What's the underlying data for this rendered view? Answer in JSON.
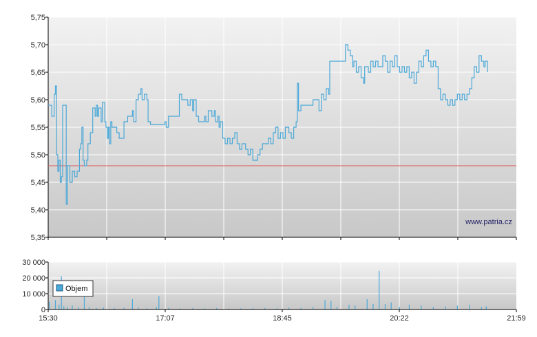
{
  "watermark": "www.patria.cz",
  "colors": {
    "price_line": "#4aa8d8",
    "reference_line": "#e05050",
    "volume_bar": "#4aa8d8",
    "grid": "#ffffff",
    "axis": "#000000"
  },
  "chart_data": [
    {
      "type": "line",
      "name": "price",
      "x_ticks": [
        "15:30",
        "17:07",
        "18:45",
        "20:22",
        "21:59"
      ],
      "x_range": [
        "15:30",
        "21:59"
      ],
      "y_ticks": [
        "5,35",
        "5,40",
        "5,45",
        "5,50",
        "5,55",
        "5,60",
        "5,65",
        "5,70",
        "5,75"
      ],
      "ylim": [
        5.35,
        5.75
      ],
      "reference_value": 5.48,
      "grid": true,
      "points": [
        [
          "15:30",
          5.59
        ],
        [
          "15:33",
          5.57
        ],
        [
          "15:35",
          5.61
        ],
        [
          "15:36",
          5.625
        ],
        [
          "15:37",
          5.5
        ],
        [
          "15:38",
          5.47
        ],
        [
          "15:39",
          5.49
        ],
        [
          "15:40",
          5.45
        ],
        [
          "15:41",
          5.46
        ],
        [
          "15:42",
          5.59
        ],
        [
          "15:44",
          5.59
        ],
        [
          "15:45",
          5.41
        ],
        [
          "15:46",
          5.48
        ],
        [
          "15:48",
          5.45
        ],
        [
          "15:50",
          5.47
        ],
        [
          "15:52",
          5.46
        ],
        [
          "15:54",
          5.47
        ],
        [
          "15:56",
          5.51
        ],
        [
          "15:57",
          5.52
        ],
        [
          "15:58",
          5.55
        ],
        [
          "15:59",
          5.49
        ],
        [
          "16:00",
          5.48
        ],
        [
          "16:02",
          5.49
        ],
        [
          "16:03",
          5.52
        ],
        [
          "16:05",
          5.54
        ],
        [
          "16:07",
          5.585
        ],
        [
          "16:09",
          5.57
        ],
        [
          "16:10",
          5.59
        ],
        [
          "16:11",
          5.57
        ],
        [
          "16:12",
          5.585
        ],
        [
          "16:14",
          5.56
        ],
        [
          "16:15",
          5.595
        ],
        [
          "16:17",
          5.56
        ],
        [
          "16:18",
          5.55
        ],
        [
          "16:19",
          5.53
        ],
        [
          "16:20",
          5.55
        ],
        [
          "16:21",
          5.52
        ],
        [
          "16:22",
          5.56
        ],
        [
          "16:23",
          5.55
        ],
        [
          "16:25",
          5.55
        ],
        [
          "16:27",
          5.54
        ],
        [
          "16:29",
          5.53
        ],
        [
          "16:31",
          5.53
        ],
        [
          "16:33",
          5.56
        ],
        [
          "16:36",
          5.57
        ],
        [
          "16:38",
          5.57
        ],
        [
          "16:40",
          5.58
        ],
        [
          "16:41",
          5.56
        ],
        [
          "16:43",
          5.6
        ],
        [
          "16:45",
          5.61
        ],
        [
          "16:47",
          5.62
        ],
        [
          "16:48",
          5.6
        ],
        [
          "16:50",
          5.61
        ],
        [
          "16:52",
          5.6
        ],
        [
          "16:53",
          5.56
        ],
        [
          "16:55",
          5.555
        ],
        [
          "17:00",
          5.555
        ],
        [
          "17:05",
          5.555
        ],
        [
          "17:07",
          5.56
        ],
        [
          "17:08",
          5.55
        ],
        [
          "17:10",
          5.57
        ],
        [
          "17:14",
          5.57
        ],
        [
          "17:17",
          5.57
        ],
        [
          "17:19",
          5.61
        ],
        [
          "17:21",
          5.6
        ],
        [
          "17:24",
          5.6
        ],
        [
          "17:26",
          5.59
        ],
        [
          "17:28",
          5.6
        ],
        [
          "17:30",
          5.58
        ],
        [
          "17:31",
          5.6
        ],
        [
          "17:33",
          5.57
        ],
        [
          "17:35",
          5.56
        ],
        [
          "17:38",
          5.56
        ],
        [
          "17:40",
          5.57
        ],
        [
          "17:41",
          5.56
        ],
        [
          "17:43",
          5.58
        ],
        [
          "17:46",
          5.57
        ],
        [
          "17:48",
          5.58
        ],
        [
          "17:49",
          5.56
        ],
        [
          "17:51",
          5.57
        ],
        [
          "17:52",
          5.55
        ],
        [
          "17:53",
          5.56
        ],
        [
          "17:55",
          5.53
        ],
        [
          "17:57",
          5.52
        ],
        [
          "17:59",
          5.53
        ],
        [
          "18:01",
          5.52
        ],
        [
          "18:03",
          5.53
        ],
        [
          "18:05",
          5.54
        ],
        [
          "18:07",
          5.52
        ],
        [
          "18:09",
          5.51
        ],
        [
          "18:11",
          5.52
        ],
        [
          "18:14",
          5.51
        ],
        [
          "18:16",
          5.5
        ],
        [
          "18:18",
          5.51
        ],
        [
          "18:20",
          5.49
        ],
        [
          "18:22",
          5.49
        ],
        [
          "18:24",
          5.5
        ],
        [
          "18:26",
          5.51
        ],
        [
          "18:28",
          5.52
        ],
        [
          "18:31",
          5.52
        ],
        [
          "18:33",
          5.53
        ],
        [
          "18:35",
          5.52
        ],
        [
          "18:37",
          5.54
        ],
        [
          "18:39",
          5.55
        ],
        [
          "18:41",
          5.53
        ],
        [
          "18:43",
          5.54
        ],
        [
          "18:45",
          5.53
        ],
        [
          "18:47",
          5.55
        ],
        [
          "18:50",
          5.54
        ],
        [
          "18:52",
          5.53
        ],
        [
          "18:54",
          5.55
        ],
        [
          "18:56",
          5.56
        ],
        [
          "18:57",
          5.63
        ],
        [
          "18:58",
          5.58
        ],
        [
          "19:00",
          5.59
        ],
        [
          "19:04",
          5.59
        ],
        [
          "19:08",
          5.59
        ],
        [
          "19:10",
          5.6
        ],
        [
          "19:13",
          5.6
        ],
        [
          "19:15",
          5.58
        ],
        [
          "19:17",
          5.61
        ],
        [
          "19:19",
          5.6
        ],
        [
          "19:21",
          5.62
        ],
        [
          "19:23",
          5.61
        ],
        [
          "19:24",
          5.67
        ],
        [
          "19:27",
          5.67
        ],
        [
          "19:31",
          5.67
        ],
        [
          "19:35",
          5.67
        ],
        [
          "19:37",
          5.7
        ],
        [
          "19:39",
          5.69
        ],
        [
          "19:41",
          5.68
        ],
        [
          "19:43",
          5.66
        ],
        [
          "19:44",
          5.67
        ],
        [
          "19:46",
          5.65
        ],
        [
          "19:48",
          5.66
        ],
        [
          "19:50",
          5.64
        ],
        [
          "19:52",
          5.63
        ],
        [
          "19:53",
          5.66
        ],
        [
          "19:55",
          5.66
        ],
        [
          "19:56",
          5.65
        ],
        [
          "19:58",
          5.67
        ],
        [
          "20:00",
          5.66
        ],
        [
          "20:02",
          5.67
        ],
        [
          "20:04",
          5.66
        ],
        [
          "20:06",
          5.66
        ],
        [
          "20:08",
          5.68
        ],
        [
          "20:10",
          5.67
        ],
        [
          "20:12",
          5.65
        ],
        [
          "20:14",
          5.67
        ],
        [
          "20:16",
          5.66
        ],
        [
          "20:18",
          5.68
        ],
        [
          "20:20",
          5.66
        ],
        [
          "20:22",
          5.65
        ],
        [
          "20:24",
          5.66
        ],
        [
          "20:26",
          5.65
        ],
        [
          "20:28",
          5.66
        ],
        [
          "20:30",
          5.64
        ],
        [
          "20:32",
          5.65
        ],
        [
          "20:34",
          5.63
        ],
        [
          "20:36",
          5.65
        ],
        [
          "20:38",
          5.67
        ],
        [
          "20:40",
          5.66
        ],
        [
          "20:42",
          5.68
        ],
        [
          "20:44",
          5.69
        ],
        [
          "20:46",
          5.67
        ],
        [
          "20:48",
          5.66
        ],
        [
          "20:50",
          5.67
        ],
        [
          "20:52",
          5.66
        ],
        [
          "20:54",
          5.62
        ],
        [
          "20:56",
          5.6
        ],
        [
          "20:58",
          5.61
        ],
        [
          "21:00",
          5.6
        ],
        [
          "21:02",
          5.59
        ],
        [
          "21:04",
          5.6
        ],
        [
          "21:06",
          5.59
        ],
        [
          "21:08",
          5.6
        ],
        [
          "21:10",
          5.61
        ],
        [
          "21:12",
          5.6
        ],
        [
          "21:14",
          5.61
        ],
        [
          "21:16",
          5.6
        ],
        [
          "21:18",
          5.61
        ],
        [
          "21:20",
          5.62
        ],
        [
          "21:22",
          5.64
        ],
        [
          "21:24",
          5.66
        ],
        [
          "21:26",
          5.65
        ],
        [
          "21:28",
          5.68
        ],
        [
          "21:30",
          5.67
        ],
        [
          "21:32",
          5.66
        ],
        [
          "21:33",
          5.67
        ],
        [
          "21:35",
          5.65
        ]
      ]
    },
    {
      "type": "bar",
      "name": "volume",
      "legend_label": "Objem",
      "x_ticks": [
        "15:30",
        "17:07",
        "18:45",
        "20:22",
        "21:59"
      ],
      "x_range": [
        "15:30",
        "21:59"
      ],
      "y_ticks": [
        "0",
        "10 000",
        "20 000",
        "30 000"
      ],
      "ylim": [
        0,
        30000
      ],
      "grid": true,
      "legend_position": "left",
      "bars": [
        [
          "15:31",
          5000
        ],
        [
          "15:36",
          6000
        ],
        [
          "15:39",
          3000
        ],
        [
          "15:41",
          21000
        ],
        [
          "15:43",
          2000
        ],
        [
          "15:46",
          1500
        ],
        [
          "15:50",
          2500
        ],
        [
          "15:55",
          1500
        ],
        [
          "16:00",
          9000
        ],
        [
          "16:04",
          1500
        ],
        [
          "16:10",
          1000
        ],
        [
          "16:16",
          1200
        ],
        [
          "16:25",
          800
        ],
        [
          "16:33",
          1000
        ],
        [
          "16:40",
          6500
        ],
        [
          "16:45",
          1200
        ],
        [
          "16:52",
          800
        ],
        [
          "17:00",
          1500
        ],
        [
          "17:02",
          8500
        ],
        [
          "17:10",
          1000
        ],
        [
          "17:20",
          600
        ],
        [
          "17:30",
          800
        ],
        [
          "17:40",
          700
        ],
        [
          "17:50",
          900
        ],
        [
          "18:00",
          600
        ],
        [
          "18:10",
          700
        ],
        [
          "18:20",
          800
        ],
        [
          "18:30",
          900
        ],
        [
          "18:40",
          700
        ],
        [
          "18:50",
          1200
        ],
        [
          "19:00",
          1000
        ],
        [
          "19:10",
          1500
        ],
        [
          "19:20",
          6000
        ],
        [
          "19:25",
          5500
        ],
        [
          "19:30",
          1500
        ],
        [
          "19:40",
          3000
        ],
        [
          "19:45",
          2500
        ],
        [
          "19:55",
          6500
        ],
        [
          "20:00",
          3500
        ],
        [
          "20:05",
          24500
        ],
        [
          "20:10",
          3500
        ],
        [
          "20:15",
          4500
        ],
        [
          "20:22",
          1500
        ],
        [
          "20:30",
          3000
        ],
        [
          "20:40",
          2500
        ],
        [
          "20:50",
          1500
        ],
        [
          "21:00",
          2000
        ],
        [
          "21:10",
          2500
        ],
        [
          "21:20",
          3000
        ],
        [
          "21:30",
          1500
        ],
        [
          "21:34",
          2000
        ]
      ]
    }
  ]
}
